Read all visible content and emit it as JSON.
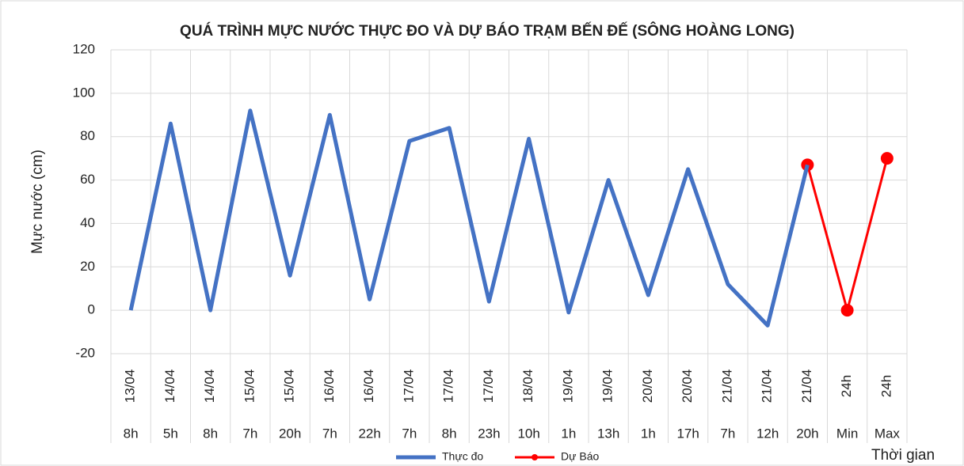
{
  "chart_data": {
    "type": "line",
    "title": "QUÁ TRÌNH MỰC NƯỚC THỰC ĐO VÀ DỰ BÁO TRẠM BẾN ĐẾ (SÔNG HOÀNG LONG)",
    "y_label": "Mực nước (cm)",
    "x_label": "Thời gian",
    "dates": [
      "13/04",
      "14/04",
      "14/04",
      "15/04",
      "15/04",
      "16/04",
      "16/04",
      "17/04",
      "17/04",
      "17/04",
      "18/04",
      "19/04",
      "19/04",
      "20/04",
      "20/04",
      "21/04",
      "21/04",
      "21/04",
      "24h",
      "24h"
    ],
    "categories": [
      "8h",
      "5h",
      "8h",
      "7h",
      "20h",
      "7h",
      "22h",
      "7h",
      "8h",
      "23h",
      "10h",
      "1h",
      "13h",
      "1h",
      "17h",
      "7h",
      "12h",
      "20h",
      "Min",
      "Max"
    ],
    "series": [
      {
        "name": "Thực đo",
        "color": "#4472c4",
        "marker": false,
        "values": [
          0,
          86,
          0,
          92,
          16,
          90,
          5,
          78,
          84,
          4,
          79,
          -1,
          60,
          7,
          65,
          12,
          -7,
          67,
          null,
          null
        ]
      },
      {
        "name": "Dự Báo",
        "color": "#ff0000",
        "marker": true,
        "values": [
          null,
          null,
          null,
          null,
          null,
          null,
          null,
          null,
          null,
          null,
          null,
          null,
          null,
          null,
          null,
          null,
          null,
          67,
          0,
          70
        ]
      }
    ],
    "ylim": [
      -20,
      120
    ],
    "yticks": [
      -20,
      0,
      20,
      40,
      60,
      80,
      100,
      120
    ],
    "grid": true,
    "legend": "bottom"
  }
}
